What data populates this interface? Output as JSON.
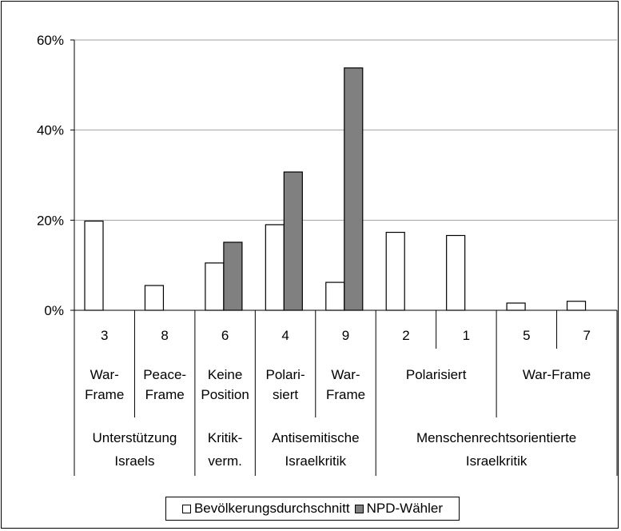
{
  "chart_data": {
    "type": "bar",
    "ylim": [
      0,
      60
    ],
    "yticks": [
      "0%",
      "20%",
      "40%",
      "60%"
    ],
    "grid": true,
    "categories": [
      "3",
      "8",
      "6",
      "4",
      "9",
      "2",
      "1",
      "5",
      "7"
    ],
    "frames": [
      {
        "label_lines": [
          "War-",
          "Frame"
        ],
        "span": [
          0,
          0
        ]
      },
      {
        "label_lines": [
          "Peace-",
          "Frame"
        ],
        "span": [
          1,
          1
        ]
      },
      {
        "label_lines": [
          "Keine",
          "Position"
        ],
        "span": [
          2,
          2
        ]
      },
      {
        "label_lines": [
          "Polari-",
          "siert"
        ],
        "span": [
          3,
          3
        ]
      },
      {
        "label_lines": [
          "War-",
          "Frame"
        ],
        "span": [
          4,
          4
        ]
      },
      {
        "label_lines": [
          "Polarisiert"
        ],
        "span": [
          5,
          6
        ]
      },
      {
        "label_lines": [
          "War-Frame"
        ],
        "span": [
          7,
          8
        ]
      }
    ],
    "groups": [
      {
        "label_lines": [
          "Unterstützung",
          "Israels"
        ],
        "span": [
          0,
          1
        ]
      },
      {
        "label_lines": [
          "Kritik-",
          "verm."
        ],
        "span": [
          2,
          2
        ]
      },
      {
        "label_lines": [
          "Antisemitische",
          "Israelkritik"
        ],
        "span": [
          3,
          4
        ]
      },
      {
        "label_lines": [
          "Menschenrechtsorientierte",
          "Israelkritik"
        ],
        "span": [
          5,
          8
        ]
      }
    ],
    "series": [
      {
        "name": "Bevölkerungsdurchschnitt",
        "color": "#ffffff",
        "values": [
          19.8,
          5.5,
          10.5,
          19.0,
          6.2,
          17.3,
          16.6,
          1.6,
          2.0
        ]
      },
      {
        "name": "NPD-Wähler",
        "color": "#808080",
        "values": [
          0,
          0,
          15.1,
          30.7,
          53.8,
          0,
          0,
          0,
          0
        ]
      }
    ],
    "legend_position": "bottom"
  }
}
